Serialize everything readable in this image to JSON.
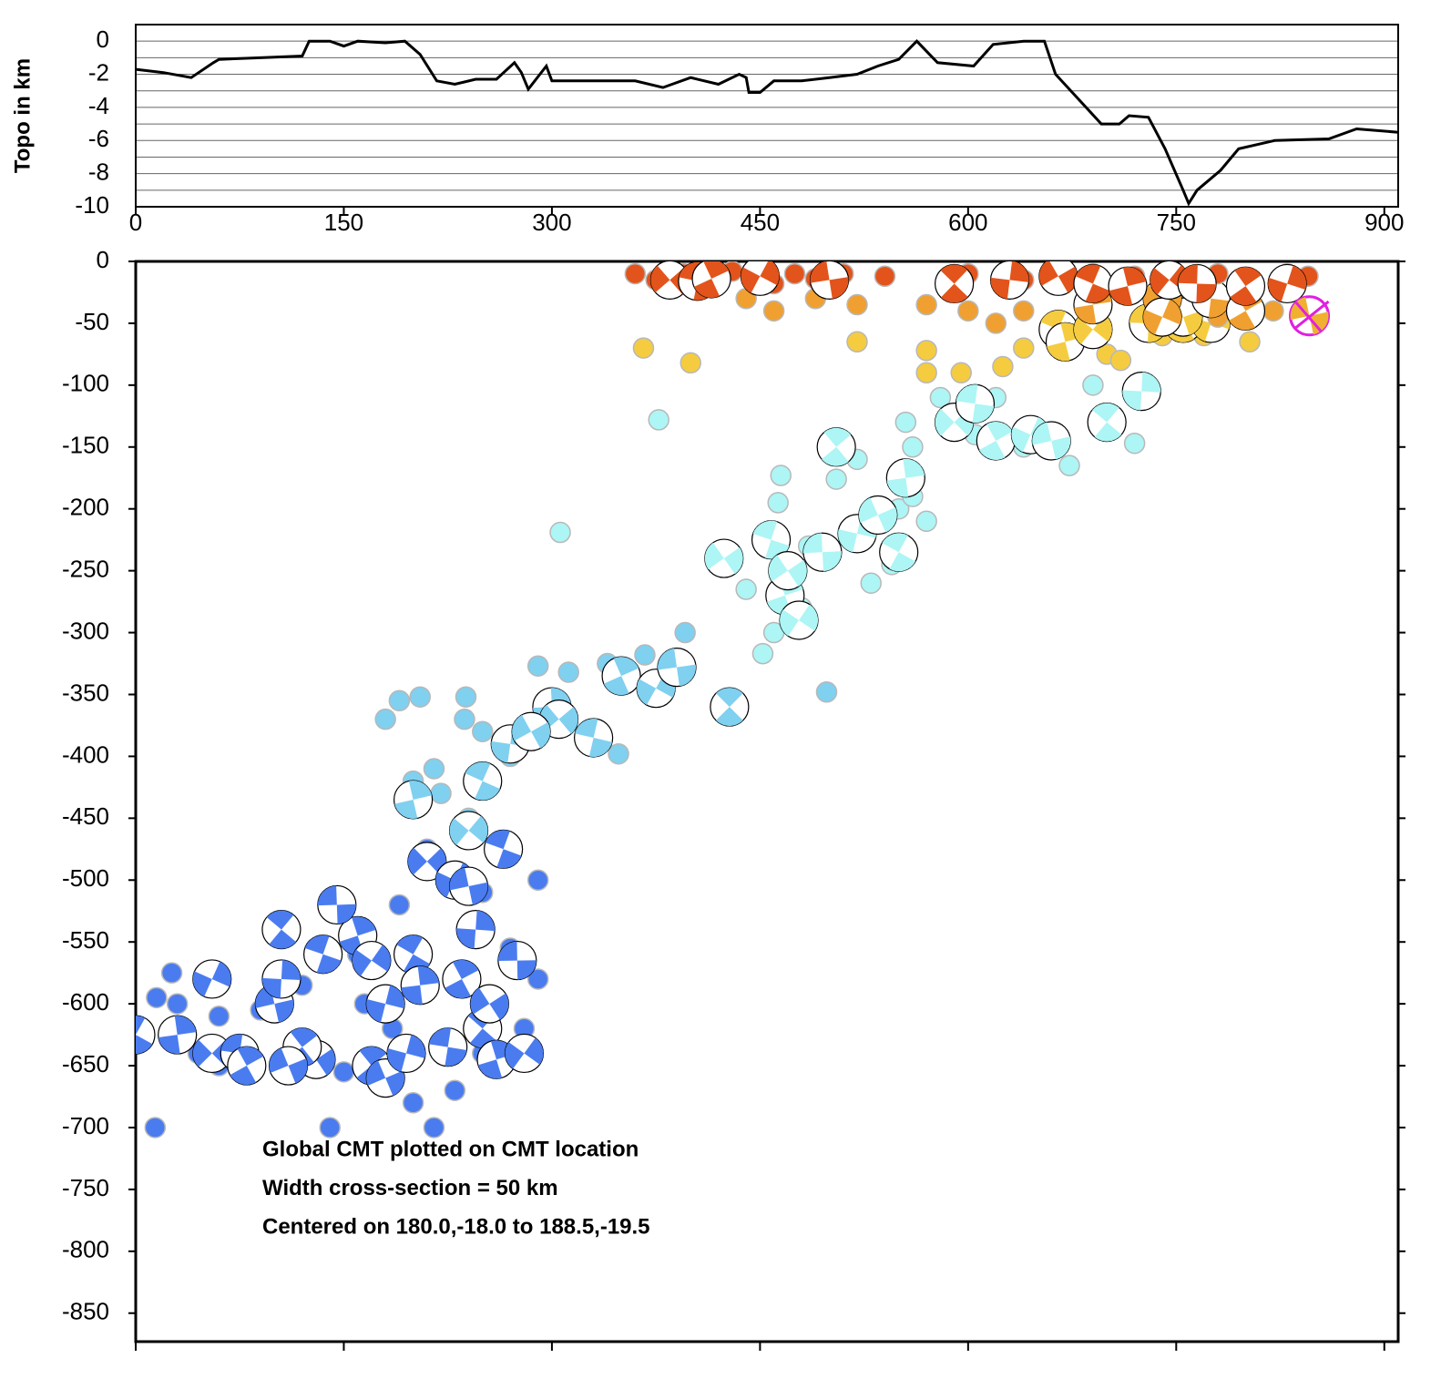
{
  "chart_data": [
    {
      "type": "line",
      "ylabel": "Topo in km",
      "color": "#000000",
      "x": [
        0,
        20,
        40,
        56,
        60,
        90,
        120,
        125,
        140,
        150,
        160,
        180,
        194,
        205,
        217,
        230,
        245,
        260,
        273,
        278,
        283,
        296,
        300,
        310,
        330,
        360,
        380,
        400,
        420,
        435,
        440,
        442,
        450,
        460,
        480,
        500,
        520,
        535,
        550,
        563,
        578,
        604,
        618,
        640,
        655,
        663,
        696,
        709,
        716,
        730,
        742,
        755,
        759,
        765,
        782,
        795,
        821,
        860,
        880,
        910
      ],
      "values": [
        -1.7,
        -1.9,
        -2.2,
        -1.3,
        -1.1,
        -1.0,
        -0.9,
        0,
        0,
        -0.3,
        0,
        -0.1,
        0,
        -0.8,
        -2.4,
        -2.6,
        -2.3,
        -2.3,
        -1.3,
        -1.9,
        -2.9,
        -1.5,
        -2.4,
        -2.4,
        -2.4,
        -2.4,
        -2.8,
        -2.2,
        -2.6,
        -2.0,
        -2.2,
        -3.1,
        -3.1,
        -2.4,
        -2.4,
        -2.2,
        -2.0,
        -1.5,
        -1.1,
        0,
        -1.3,
        -1.5,
        -0.2,
        0,
        0,
        -2.0,
        -5.0,
        -5.0,
        -4.5,
        -4.6,
        -6.5,
        -9.0,
        -9.8,
        -9.0,
        -7.8,
        -6.5,
        -6.0,
        -5.9,
        -5.3,
        -5.5
      ],
      "xlim": [
        0,
        910
      ],
      "ylim": [
        -10,
        1
      ],
      "xticks": [
        0,
        150,
        300,
        450,
        600,
        750,
        900
      ],
      "yticks": [
        -10,
        -8,
        -6,
        -4,
        -2,
        0
      ],
      "yminorticks": [
        -9,
        -7,
        -5,
        -3,
        -1,
        1
      ],
      "grid": true
    },
    {
      "type": "scatter",
      "xlim": [
        0,
        910
      ],
      "ylim": [
        -873,
        0
      ],
      "yticks": [
        0,
        -50,
        -100,
        -150,
        -200,
        -250,
        -300,
        -350,
        -400,
        -450,
        -500,
        -550,
        -600,
        -650,
        -700,
        -750,
        -800,
        -850
      ],
      "annotations": [
        "Global CMT plotted on CMT location",
        "Width cross-section = 50 km",
        "Centered on 180.0,-18.0 to 188.5,-19.5"
      ],
      "series": [
        {
          "color": "#4a7cf0",
          "beachball": false,
          "x": [
            14,
            0,
            15,
            30,
            45,
            60,
            90,
            110,
            120,
            135,
            150,
            165,
            200,
            215,
            140,
            160,
            190,
            250,
            290,
            260,
            210,
            290,
            280,
            250,
            230,
            185,
            130,
            100,
            26,
            60,
            270,
            245
          ],
          "values": [
            -700,
            -620,
            -595,
            -600,
            -640,
            -610,
            -605,
            -645,
            -585,
            -640,
            -655,
            -600,
            -680,
            -700,
            -700,
            -560,
            -520,
            -510,
            -500,
            -480,
            -475,
            -580,
            -620,
            -640,
            -670,
            -620,
            -555,
            -575,
            -575,
            -650,
            -555,
            -545
          ]
        },
        {
          "color": "#4a7cf0",
          "beachball": true,
          "x": [
            0,
            30,
            55,
            75,
            80,
            55,
            100,
            105,
            105,
            130,
            135,
            160,
            170,
            145,
            170,
            180,
            180,
            200,
            205,
            210,
            225,
            235,
            230,
            240,
            250,
            245,
            255,
            265,
            260,
            280,
            275,
            120,
            195,
            110
          ],
          "values": [
            -625,
            -625,
            -640,
            -640,
            -650,
            -580,
            -600,
            -540,
            -580,
            -645,
            -560,
            -545,
            -565,
            -520,
            -650,
            -600,
            -660,
            -560,
            -585,
            -485,
            -635,
            -580,
            -500,
            -505,
            -620,
            -540,
            -600,
            -475,
            -645,
            -640,
            -565,
            -635,
            -640,
            -650
          ]
        },
        {
          "color": "#80d0f0",
          "beachball": false,
          "x": [
            498,
            396,
            430,
            367,
            340,
            290,
            312,
            348,
            237,
            205,
            238,
            190,
            180,
            215,
            200,
            250,
            270,
            220,
            240
          ],
          "values": [
            -348,
            -300,
            -360,
            -318,
            -325,
            -327,
            -332,
            -398,
            -370,
            -352,
            -352,
            -355,
            -370,
            -410,
            -420,
            -380,
            -400,
            -430,
            -450
          ]
        },
        {
          "color": "#80d0f0",
          "beachball": true,
          "x": [
            300,
            305,
            330,
            350,
            375,
            390,
            428,
            270,
            285,
            250,
            200,
            240
          ],
          "values": [
            -360,
            -370,
            -385,
            -335,
            -345,
            -328,
            -360,
            -390,
            -380,
            -420,
            -435,
            -460
          ]
        },
        {
          "color": "#aef5f5",
          "beachball": false,
          "x": [
            377,
            306,
            465,
            463,
            505,
            520,
            560,
            550,
            570,
            560,
            545,
            440,
            460,
            452,
            605,
            640,
            720,
            690,
            673,
            705,
            485,
            530,
            480,
            580,
            620,
            555
          ],
          "values": [
            -128,
            -219,
            -173,
            -195,
            -176,
            -160,
            -150,
            -200,
            -210,
            -190,
            -245,
            -265,
            -300,
            -317,
            -140,
            -150,
            -147,
            -100,
            -165,
            -125,
            -230,
            -260,
            -280,
            -110,
            -110,
            -130
          ]
        },
        {
          "color": "#aef5f5",
          "beachball": true,
          "x": [
            424,
            458,
            468,
            478,
            495,
            505,
            520,
            535,
            550,
            555,
            590,
            605,
            620,
            645,
            660,
            700,
            725,
            470
          ],
          "values": [
            -240,
            -225,
            -270,
            -290,
            -235,
            -150,
            -220,
            -205,
            -235,
            -175,
            -130,
            -115,
            -145,
            -140,
            -145,
            -130,
            -105,
            -250
          ]
        },
        {
          "color": "#f5cc40",
          "beachball": false,
          "x": [
            366,
            400,
            520,
            570,
            570,
            595,
            625,
            640,
            700,
            710,
            740,
            770,
            803,
            690
          ],
          "values": [
            -70,
            -82,
            -65,
            -72,
            -90,
            -90,
            -85,
            -70,
            -75,
            -80,
            -60,
            -60,
            -65,
            -55
          ]
        },
        {
          "color": "#f5cc40",
          "beachball": true,
          "x": [
            665,
            670,
            690,
            730,
            755,
            775,
            755
          ],
          "values": [
            -55,
            -65,
            -55,
            -50,
            -50,
            -50,
            -45
          ]
        },
        {
          "color": "#f0a030",
          "beachball": false,
          "x": [
            440,
            460,
            490,
            520,
            570,
            600,
            620,
            640,
            690,
            740,
            780,
            820
          ],
          "values": [
            -30,
            -40,
            -30,
            -35,
            -35,
            -40,
            -50,
            -40,
            -40,
            -50,
            -45,
            -40
          ]
        },
        {
          "color": "#f0a030",
          "beachball": true,
          "x": [
            690,
            740,
            775,
            800,
            740
          ],
          "values": [
            -35,
            -30,
            -30,
            -40,
            -45
          ]
        },
        {
          "color": "#e2541b",
          "beachball": false,
          "x": [
            360,
            375,
            395,
            430,
            445,
            460,
            475,
            490,
            510,
            540,
            600,
            625,
            640,
            690,
            720,
            745,
            780,
            800,
            830,
            845
          ],
          "values": [
            -10,
            -15,
            -10,
            -8,
            -12,
            -18,
            -10,
            -14,
            -10,
            -12,
            -10,
            -12,
            -15,
            -10,
            -12,
            -8,
            -10,
            -15,
            -10,
            -12
          ]
        },
        {
          "color": "#e2541b",
          "beachball": true,
          "x": [
            385,
            405,
            415,
            450,
            500,
            590,
            630,
            665,
            690,
            715,
            745,
            765,
            800,
            830
          ],
          "values": [
            -15,
            -16,
            -14,
            -12,
            -15,
            -18,
            -15,
            -12,
            -18,
            -20,
            -15,
            -18,
            -20,
            -18
          ]
        },
        {
          "color": "#f0b030",
          "edgecolor": "#e020e0",
          "beachball": true,
          "x": [
            846
          ],
          "values": [
            -44
          ]
        }
      ]
    }
  ]
}
